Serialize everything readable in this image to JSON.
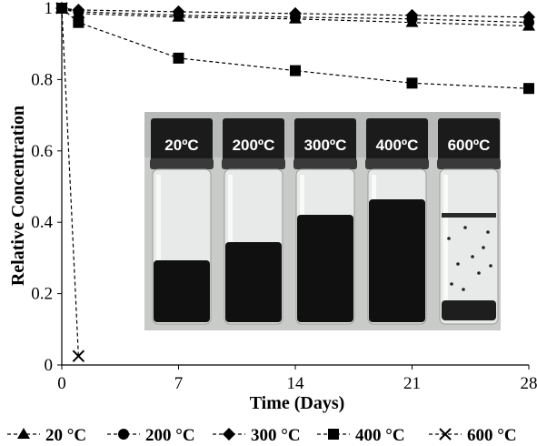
{
  "chart_data": {
    "type": "line",
    "xlabel": "Time (Days)",
    "ylabel": "Relative Concentration",
    "xlim": [
      0,
      28
    ],
    "ylim": [
      0,
      1
    ],
    "xticks": [
      "0",
      "7",
      "14",
      "21",
      "28"
    ],
    "yticks": [
      "0",
      "0.2",
      "0.4",
      "0.6",
      "0.8",
      "1"
    ],
    "grid": false,
    "legend_position": "bottom",
    "series": [
      {
        "name": "20 °C",
        "marker": "triangle",
        "x": [
          0,
          1,
          7,
          14,
          21,
          28
        ],
        "y": [
          1,
          0.985,
          0.975,
          0.97,
          0.96,
          0.95
        ]
      },
      {
        "name": "200 °C",
        "marker": "circle",
        "x": [
          0,
          1,
          7,
          14,
          21,
          28
        ],
        "y": [
          1,
          0.99,
          0.98,
          0.975,
          0.97,
          0.96
        ]
      },
      {
        "name": "300 °C",
        "marker": "diamond",
        "x": [
          0,
          1,
          7,
          14,
          21,
          28
        ],
        "y": [
          1,
          0.995,
          0.99,
          0.985,
          0.98,
          0.975
        ]
      },
      {
        "name": "400 °C",
        "marker": "square",
        "x": [
          0,
          1,
          7,
          14,
          21,
          28
        ],
        "y": [
          1,
          0.96,
          0.86,
          0.825,
          0.79,
          0.775
        ]
      },
      {
        "name": "600 °C",
        "marker": "x",
        "x": [
          0,
          1
        ],
        "y": [
          1,
          0.025
        ]
      }
    ],
    "inset_photo": {
      "labels": [
        "20ºC",
        "200ºC",
        "300ºC",
        "400ºC",
        "600ºC"
      ]
    }
  }
}
